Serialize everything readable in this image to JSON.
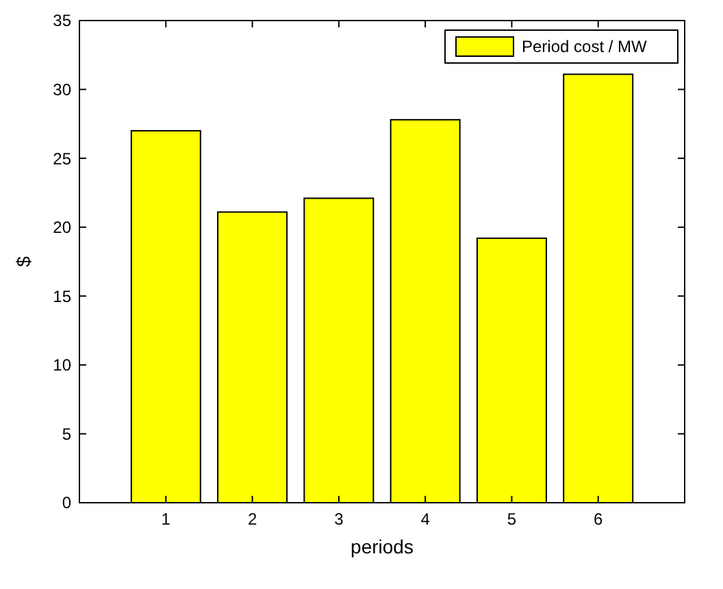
{
  "chart_data": {
    "type": "bar",
    "categories": [
      "1",
      "2",
      "3",
      "4",
      "5",
      "6"
    ],
    "series": [
      {
        "name": "Period cost / MW",
        "color": "#ffff00",
        "values": [
          27.0,
          21.1,
          22.1,
          27.8,
          19.2,
          31.1
        ]
      }
    ],
    "xlabel": "periods",
    "ylabel": "$",
    "ylim": [
      0,
      35
    ],
    "yticks": [
      0,
      5,
      10,
      15,
      20,
      25,
      30,
      35
    ],
    "grid": false,
    "legend": "top right"
  }
}
